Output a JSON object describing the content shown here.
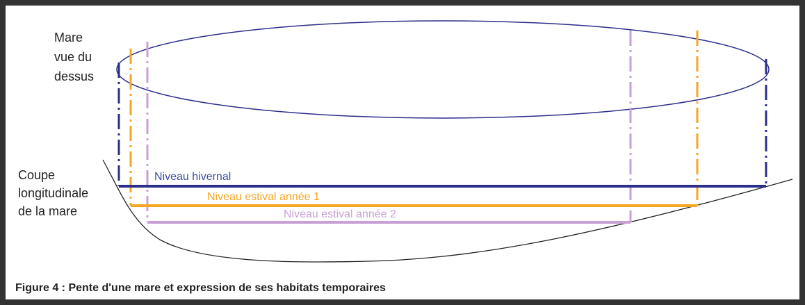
{
  "labels": {
    "top_view": [
      "Mare",
      "vue du",
      "dessus"
    ],
    "section": [
      "Coupe",
      "longitudinale",
      "de la mare"
    ]
  },
  "levels": [
    {
      "label": "Niveau hivernal",
      "color": "#2b2e8a"
    },
    {
      "label": "Niveau estival année 1",
      "color": "#f5a623"
    },
    {
      "label": "Niveau estival année 2",
      "color": "#c9a0d6"
    }
  ],
  "caption": "Figure 4 : Pente d'une mare et expression de ses habitats temporaires"
}
